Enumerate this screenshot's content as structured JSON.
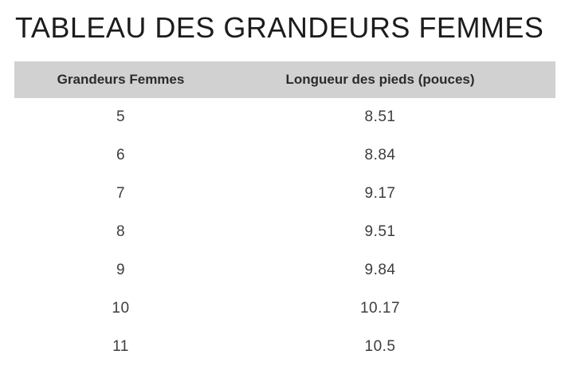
{
  "page": {
    "title": "TABLEAU DES GRANDEURS FEMMES"
  },
  "table": {
    "headers": {
      "size": "Grandeurs Femmes",
      "length": "Longueur des pieds (pouces)"
    },
    "rows": [
      {
        "size": "5",
        "length": "8.51"
      },
      {
        "size": "6",
        "length": "8.84"
      },
      {
        "size": "7",
        "length": "9.17"
      },
      {
        "size": "8",
        "length": "9.51"
      },
      {
        "size": "9",
        "length": "9.84"
      },
      {
        "size": "10",
        "length": "10.17"
      },
      {
        "size": "11",
        "length": "10.5"
      }
    ]
  },
  "colors": {
    "header_background": "#d1d1d1",
    "title_text": "#1c1c1c",
    "header_text": "#2b2b2b",
    "cell_text": "#3d3d3d",
    "page_background": "#ffffff"
  },
  "chart_data": {
    "type": "table",
    "title": "TABLEAU DES GRANDEURS FEMMES",
    "columns": [
      "Grandeurs Femmes",
      "Longueur des pieds (pouces)"
    ],
    "rows": [
      [
        "5",
        "8.51"
      ],
      [
        "6",
        "8.84"
      ],
      [
        "7",
        "9.17"
      ],
      [
        "8",
        "9.51"
      ],
      [
        "9",
        "9.84"
      ],
      [
        "10",
        "10.17"
      ],
      [
        "11",
        "10.5"
      ]
    ]
  }
}
